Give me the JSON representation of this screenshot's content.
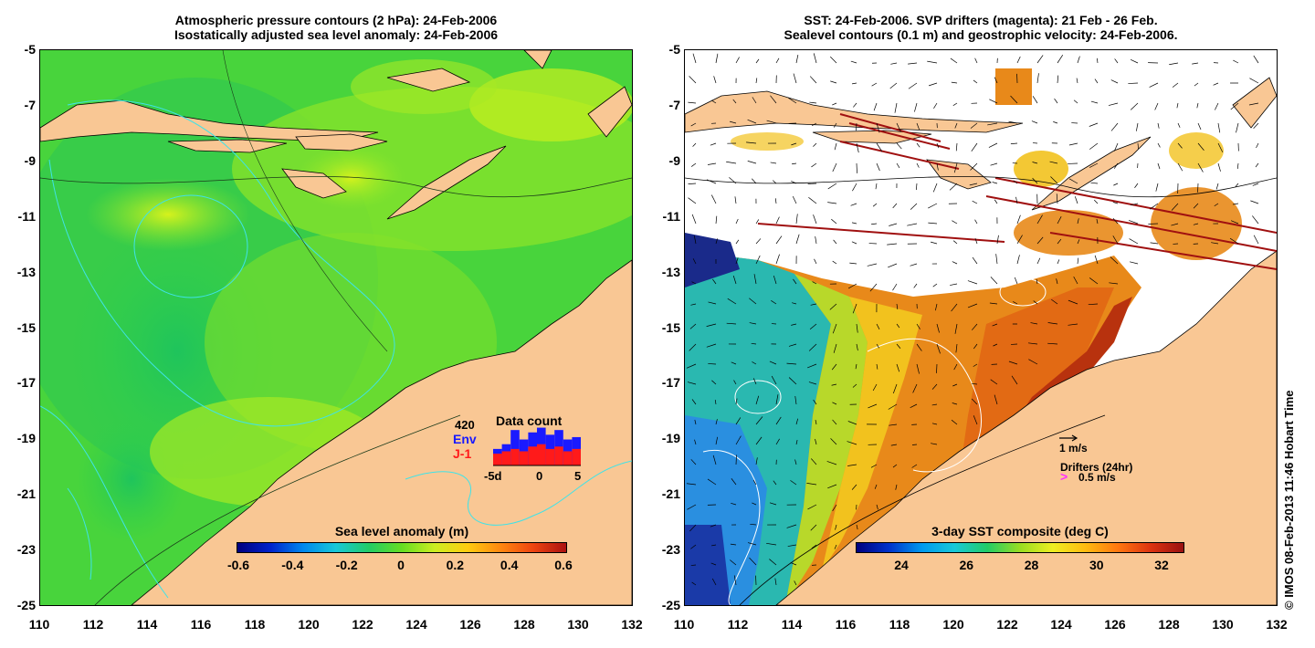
{
  "left_panel": {
    "title_line1": "Atmospheric pressure contours (2 hPa): 24-Feb-2006",
    "title_line2": "Isostatically adjusted sea level anomaly: 24-Feb-2006",
    "y_ticks": [
      "-5",
      "-7",
      "-9",
      "-11",
      "-13",
      "-15",
      "-17",
      "-19",
      "-21",
      "-23",
      "-25"
    ],
    "x_ticks": [
      "110",
      "112",
      "114",
      "116",
      "118",
      "120",
      "122",
      "124",
      "126",
      "128",
      "130",
      "132"
    ],
    "colorbar_label": "Sea level anomaly (m)",
    "colorbar_ticks": [
      "-0.6",
      "-0.4",
      "-0.2",
      "0",
      "0.2",
      "0.4",
      "0.6"
    ],
    "data_count": {
      "title": "Data count",
      "count": "420",
      "env_label": "Env",
      "j1_label": "J-1",
      "x_ticks": [
        "-5d",
        "0",
        "5"
      ],
      "env_values": [
        14,
        18,
        30,
        22,
        28,
        32,
        26,
        30,
        22,
        24
      ],
      "j1_values": [
        10,
        12,
        14,
        12,
        16,
        18,
        14,
        16,
        12,
        14
      ],
      "env_color": "#1a1aff",
      "j1_color": "#ff1a1a"
    }
  },
  "right_panel": {
    "title_line1": "SST: 24-Feb-2006. SVP drifters (magenta): 21 Feb - 26 Feb.",
    "title_line2": "Sealevel contours (0.1 m) and geostrophic velocity: 24-Feb-2006.",
    "y_ticks": [
      "-5",
      "-7",
      "-9",
      "-11",
      "-13",
      "-15",
      "-17",
      "-19",
      "-21",
      "-23",
      "-25"
    ],
    "x_ticks": [
      "110",
      "112",
      "114",
      "116",
      "118",
      "120",
      "122",
      "124",
      "126",
      "128",
      "130",
      "132"
    ],
    "colorbar_label": "3-day SST composite (deg C)",
    "colorbar_ticks": [
      "24",
      "26",
      "28",
      "30",
      "32"
    ],
    "velocity_scale": "1 m/s",
    "drifters_label": "Drifters (24hr)",
    "drifter_scale": "0.5 m/s",
    "drifter_marker": ">"
  },
  "credit": "© IMOS 08-Feb-2013 11:46 Hobart Time",
  "colors": {
    "land": "#f9c794",
    "sla_background": "#7ee02a",
    "sst_warm": "#e8891a"
  }
}
